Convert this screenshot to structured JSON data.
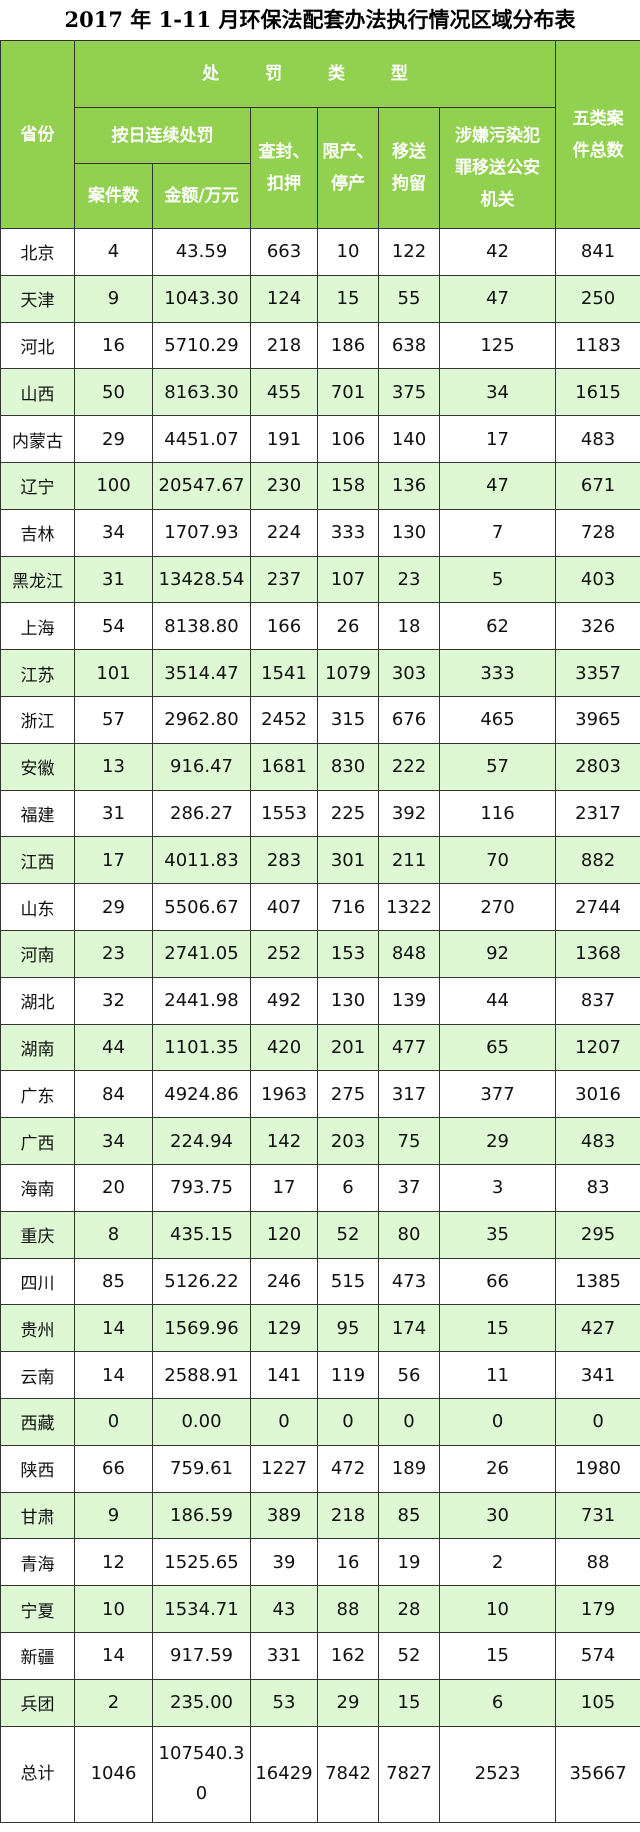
{
  "title": "2017 年 1-11 月环保法配套办法执行情况区域分布表",
  "colors": {
    "header_bg": "#92d050",
    "alt_row_bg": "#ddf8d3"
  },
  "headers": {
    "province": "省份",
    "penalty_type": "处 罚 类 型",
    "daily_penalty": "按日连续处罚",
    "case_count": "案件数",
    "amount": "金额/万元",
    "seal": "查封、扣押",
    "limit": "限产、停产",
    "detain": "移送拘留",
    "police": "涉嫌污染犯罪移送公安机关",
    "total": "五类案件总数"
  },
  "rows": [
    [
      "北京",
      "4",
      "43.59",
      "663",
      "10",
      "122",
      "42",
      "841"
    ],
    [
      "天津",
      "9",
      "1043.30",
      "124",
      "15",
      "55",
      "47",
      "250"
    ],
    [
      "河北",
      "16",
      "5710.29",
      "218",
      "186",
      "638",
      "125",
      "1183"
    ],
    [
      "山西",
      "50",
      "8163.30",
      "455",
      "701",
      "375",
      "34",
      "1615"
    ],
    [
      "内蒙古",
      "29",
      "4451.07",
      "191",
      "106",
      "140",
      "17",
      "483"
    ],
    [
      "辽宁",
      "100",
      "20547.67",
      "230",
      "158",
      "136",
      "47",
      "671"
    ],
    [
      "吉林",
      "34",
      "1707.93",
      "224",
      "333",
      "130",
      "7",
      "728"
    ],
    [
      "黑龙江",
      "31",
      "13428.54",
      "237",
      "107",
      "23",
      "5",
      "403"
    ],
    [
      "上海",
      "54",
      "8138.80",
      "166",
      "26",
      "18",
      "62",
      "326"
    ],
    [
      "江苏",
      "101",
      "3514.47",
      "1541",
      "1079",
      "303",
      "333",
      "3357"
    ],
    [
      "浙江",
      "57",
      "2962.80",
      "2452",
      "315",
      "676",
      "465",
      "3965"
    ],
    [
      "安徽",
      "13",
      "916.47",
      "1681",
      "830",
      "222",
      "57",
      "2803"
    ],
    [
      "福建",
      "31",
      "286.27",
      "1553",
      "225",
      "392",
      "116",
      "2317"
    ],
    [
      "江西",
      "17",
      "4011.83",
      "283",
      "301",
      "211",
      "70",
      "882"
    ],
    [
      "山东",
      "29",
      "5506.67",
      "407",
      "716",
      "1322",
      "270",
      "2744"
    ],
    [
      "河南",
      "23",
      "2741.05",
      "252",
      "153",
      "848",
      "92",
      "1368"
    ],
    [
      "湖北",
      "32",
      "2441.98",
      "492",
      "130",
      "139",
      "44",
      "837"
    ],
    [
      "湖南",
      "44",
      "1101.35",
      "420",
      "201",
      "477",
      "65",
      "1207"
    ],
    [
      "广东",
      "84",
      "4924.86",
      "1963",
      "275",
      "317",
      "377",
      "3016"
    ],
    [
      "广西",
      "34",
      "224.94",
      "142",
      "203",
      "75",
      "29",
      "483"
    ],
    [
      "海南",
      "20",
      "793.75",
      "17",
      "6",
      "37",
      "3",
      "83"
    ],
    [
      "重庆",
      "8",
      "435.15",
      "120",
      "52",
      "80",
      "35",
      "295"
    ],
    [
      "四川",
      "85",
      "5126.22",
      "246",
      "515",
      "473",
      "66",
      "1385"
    ],
    [
      "贵州",
      "14",
      "1569.96",
      "129",
      "95",
      "174",
      "15",
      "427"
    ],
    [
      "云南",
      "14",
      "2588.91",
      "141",
      "119",
      "56",
      "11",
      "341"
    ],
    [
      "西藏",
      "0",
      "0.00",
      "0",
      "0",
      "0",
      "0",
      "0"
    ],
    [
      "陕西",
      "66",
      "759.61",
      "1227",
      "472",
      "189",
      "26",
      "1980"
    ],
    [
      "甘肃",
      "9",
      "186.59",
      "389",
      "218",
      "85",
      "30",
      "731"
    ],
    [
      "青海",
      "12",
      "1525.65",
      "39",
      "16",
      "19",
      "2",
      "88"
    ],
    [
      "宁夏",
      "10",
      "1534.71",
      "43",
      "88",
      "28",
      "10",
      "179"
    ],
    [
      "新疆",
      "14",
      "917.59",
      "331",
      "162",
      "52",
      "15",
      "574"
    ],
    [
      "兵团",
      "2",
      "235.00",
      "53",
      "29",
      "15",
      "6",
      "105"
    ]
  ],
  "total_row": [
    "总计",
    "1046",
    "107540.30",
    "16429",
    "7842",
    "7827",
    "2523",
    "35667"
  ]
}
